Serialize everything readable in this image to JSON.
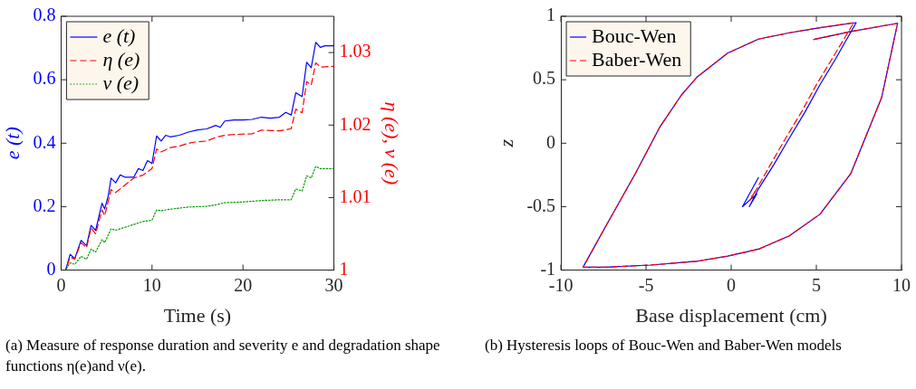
{
  "chart_data": [
    {
      "type": "line",
      "xlabel": "Time (s)",
      "ylabel": "e (t)",
      "y2label": "η (e), ν (e)",
      "xlim": [
        0,
        30
      ],
      "xticks": [
        0,
        10,
        20,
        30
      ],
      "ylim": [
        0,
        0.8
      ],
      "yticks": [
        0,
        0.2,
        0.4,
        0.6,
        0.8
      ],
      "y2lim": [
        1,
        1.035
      ],
      "y2ticks": [
        1,
        1.01,
        1.02,
        1.03
      ],
      "grid": false,
      "legend": "top left",
      "marker": "none",
      "annotations": [
        "(a) Measure of response duration and severity e and degradation shape functions η(e)and ν(e)."
      ],
      "series": [
        {
          "name": "e (t)",
          "color": "#0000ff",
          "line_style": "solid",
          "x": [
            0,
            0.5,
            1,
            1.5,
            2.2,
            2.8,
            3.3,
            3.8,
            4.5,
            4.8,
            5.2,
            5.5,
            6,
            6.5,
            7,
            8,
            8.5,
            9,
            9.5,
            10,
            10.5,
            11,
            11.5,
            12,
            13,
            14,
            15,
            16,
            17,
            17.5,
            18,
            19,
            20,
            21,
            22,
            23,
            24,
            24.7,
            25.3,
            25.8,
            26.5,
            27,
            27.5,
            28,
            28.5,
            29,
            30
          ],
          "values": [
            0,
            0,
            0.05,
            0.036,
            0.094,
            0.077,
            0.141,
            0.125,
            0.211,
            0.193,
            0.236,
            0.29,
            0.275,
            0.3,
            0.293,
            0.293,
            0.32,
            0.314,
            0.345,
            0.336,
            0.423,
            0.407,
            0.425,
            0.42,
            0.425,
            0.435,
            0.442,
            0.445,
            0.456,
            0.45,
            0.47,
            0.473,
            0.473,
            0.475,
            0.482,
            0.479,
            0.482,
            0.497,
            0.489,
            0.559,
            0.547,
            0.655,
            0.638,
            0.718,
            0.702,
            0.707,
            0.707
          ]
        },
        {
          "name": "η (e)",
          "color": "#ff0000",
          "line_style": "dashed",
          "axis": "y2",
          "x": [
            0,
            0.5,
            1,
            1.5,
            2.2,
            2.8,
            3.3,
            3.8,
            4.5,
            4.8,
            5.5,
            6,
            7,
            8,
            9,
            10,
            10.5,
            11,
            12,
            13,
            14,
            15,
            16,
            17,
            18,
            19,
            21,
            22,
            24,
            25.3,
            25.8,
            26.5,
            27,
            27.5,
            28,
            28.5,
            30
          ],
          "values": [
            1,
            1,
            1.0018,
            1.0015,
            1.0038,
            1.0031,
            1.0058,
            1.005,
            1.0083,
            1.0075,
            1.0111,
            1.0107,
            1.0117,
            1.0127,
            1.0131,
            1.014,
            1.0167,
            1.0163,
            1.0169,
            1.0171,
            1.0175,
            1.0177,
            1.0178,
            1.0183,
            1.0186,
            1.0187,
            1.0188,
            1.0193,
            1.0192,
            1.0195,
            1.0222,
            1.0217,
            1.026,
            1.0255,
            1.0286,
            1.028,
            1.0281
          ]
        },
        {
          "name": "ν (e)",
          "color": "#009900",
          "line_style": "dotted",
          "axis": "y2",
          "x": [
            0,
            0.5,
            1,
            1.5,
            2.2,
            2.8,
            3.3,
            3.8,
            4.5,
            4.8,
            5.5,
            6,
            7,
            8,
            9,
            10,
            10.5,
            11,
            12,
            14,
            16,
            17,
            18,
            20,
            22,
            24,
            25.3,
            25.8,
            26.5,
            27,
            27.5,
            28,
            28.5,
            30
          ],
          "values": [
            1,
            1,
            1.001,
            1.0008,
            1.0019,
            1.0015,
            1.0029,
            1.0025,
            1.0042,
            1.0038,
            1.0057,
            1.0055,
            1.0059,
            1.0063,
            1.0067,
            1.0069,
            1.0083,
            1.0082,
            1.0084,
            1.0087,
            1.0088,
            1.009,
            1.0093,
            1.0094,
            1.0096,
            1.0097,
            1.0097,
            1.0112,
            1.0109,
            1.013,
            1.0127,
            1.0143,
            1.014,
            1.014
          ]
        }
      ]
    },
    {
      "type": "line",
      "xlabel": "Base displacement (cm)",
      "ylabel": "z",
      "xlim": [
        -10,
        10
      ],
      "xticks": [
        -10,
        -5,
        0,
        5,
        10
      ],
      "ylim": [
        -1,
        1
      ],
      "yticks": [
        -1,
        -0.5,
        0,
        0.5,
        1
      ],
      "grid": false,
      "legend": "top left",
      "marker": "none",
      "annotations": [
        "(b) Hysteresis loops of Bouc-Wen and Baber-Wen models"
      ],
      "series": [
        {
          "name": "Bouc-Wen",
          "color": "#0000ff",
          "line_style": "solid",
          "x": [
            4.85,
            7.02,
            9.77,
            8.83,
            7.02,
            5.21,
            3.41,
            1.6,
            -0.21,
            -2.01,
            -4.72,
            -7.43,
            -8.7,
            -7.43,
            -5.63,
            -4.18,
            -2.92,
            -2.01,
            -0.21,
            1.6,
            3.41,
            5.21,
            7.34,
            6.11,
            5.21,
            4.31,
            3.41,
            2.5,
            1.6,
            1.06,
            1.5,
            0.66,
            1.6
          ],
          "values": [
            0.817,
            0.88,
            0.945,
            0.358,
            -0.24,
            -0.56,
            -0.73,
            -0.835,
            -0.89,
            -0.93,
            -0.96,
            -0.977,
            -0.977,
            -0.67,
            -0.24,
            0.13,
            0.38,
            0.52,
            0.71,
            0.82,
            0.87,
            0.91,
            0.95,
            0.66,
            0.46,
            0.24,
            0.04,
            -0.17,
            -0.36,
            -0.5,
            -0.4,
            -0.5,
            -0.27
          ]
        },
        {
          "name": "Baber-Wen",
          "color": "#ff0000",
          "line_style": "dashed",
          "x": [
            4.85,
            7.02,
            9.77,
            8.83,
            7.02,
            5.21,
            3.41,
            1.6,
            -0.21,
            -2.01,
            -4.72,
            -7.43,
            -8.7,
            -7.43,
            -5.63,
            -4.18,
            -2.92,
            -2.01,
            -0.21,
            1.6,
            3.41,
            5.21,
            7.2,
            5.9,
            5.0,
            4.1,
            3.2,
            2.3,
            1.5,
            1.1,
            1.4,
            1.2
          ],
          "values": [
            0.817,
            0.88,
            0.945,
            0.358,
            -0.24,
            -0.56,
            -0.73,
            -0.835,
            -0.89,
            -0.93,
            -0.96,
            -0.977,
            -0.977,
            -0.67,
            -0.24,
            0.13,
            0.38,
            0.52,
            0.71,
            0.82,
            0.87,
            0.91,
            0.95,
            0.66,
            0.46,
            0.24,
            0.04,
            -0.17,
            -0.36,
            -0.45,
            -0.38,
            -0.42
          ]
        }
      ]
    }
  ]
}
